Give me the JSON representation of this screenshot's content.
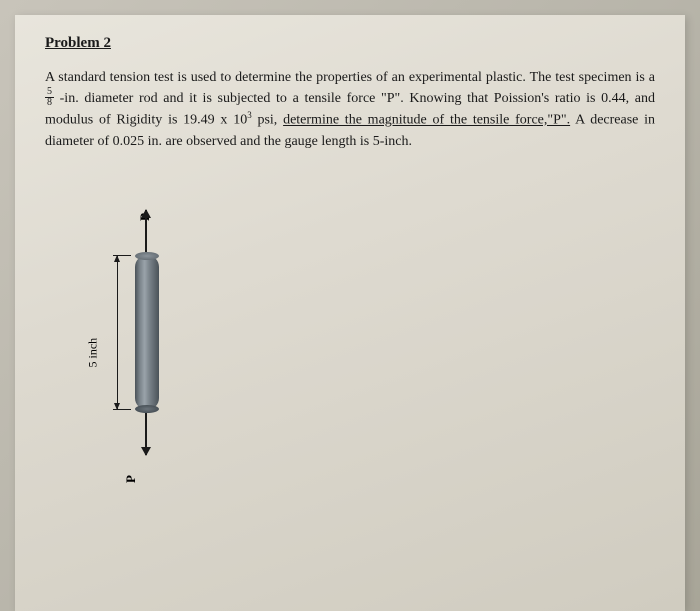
{
  "heading": "Problem 2",
  "paragraph": {
    "part1": "A standard tension test is used to determine the properties of an experimental plastic. The test specimen is a ",
    "fraction_num": "5",
    "fraction_den": "8",
    "part2": " -in. diameter rod and it is subjected to a  tensile force \"P\". Knowing that Poission's ratio is 0.44, and modulus of Rigidity is 19.49 x 10",
    "exponent": "3",
    "part3": " psi, ",
    "underlined": "determine the magnitude of the tensile force,\"P\".",
    "part4": " A decrease in diameter of 0.025 in. are observed and the gauge length is 5-inch."
  },
  "diagram": {
    "force_label_top": "P",
    "force_label_bottom": "P",
    "dimension_label": "5 inch",
    "rod_color_dark": "#4a5258",
    "rod_color_light": "#9aa3aa"
  },
  "page_bg": "#dedad0",
  "text_color": "#1a1a1a"
}
